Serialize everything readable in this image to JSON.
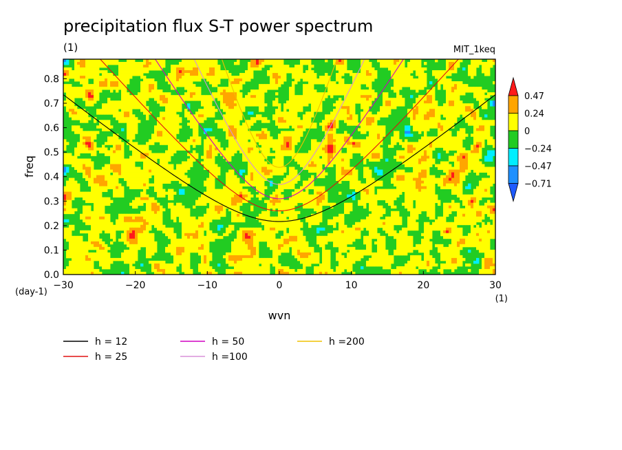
{
  "chart_data": {
    "type": "heatmap",
    "title": "precipitation flux S-T power spectrum",
    "subtitle": "(1)",
    "run_label": "MIT_1keq",
    "xlabel": "wvn",
    "ylabel": "freq",
    "x_unit": "(1)",
    "y_unit": "(day-1)",
    "xlim": [
      -30,
      30
    ],
    "ylim": [
      0,
      0.88
    ],
    "x_ticks": [
      -30,
      -20,
      -10,
      0,
      10,
      20,
      30
    ],
    "y_ticks": [
      0.0,
      0.1,
      0.2,
      0.3,
      0.4,
      0.5,
      0.6,
      0.7,
      0.8
    ],
    "colorbar": {
      "levels": [
        "0.47",
        "0.24",
        "0",
        "-0.24",
        "-0.47",
        "-0.71"
      ],
      "colors": [
        "#ff1a1a",
        "#ffa500",
        "#ffff00",
        "#22cc22",
        "#00eeff",
        "#1e90ff",
        "#1e5aff"
      ]
    },
    "dispersion_curves": [
      {
        "name": "h = 12",
        "h": 12,
        "color": "#000000"
      },
      {
        "name": "h = 25",
        "h": 25,
        "color": "#e01010"
      },
      {
        "name": "h = 50",
        "h": 50,
        "color": "#d000c0"
      },
      {
        "name": "h =100",
        "h": 100,
        "color": "#d890d8"
      },
      {
        "name": "h =200",
        "h": 200,
        "color": "#f0c000"
      }
    ],
    "grid": false,
    "legend_placement": "bottom-left"
  }
}
